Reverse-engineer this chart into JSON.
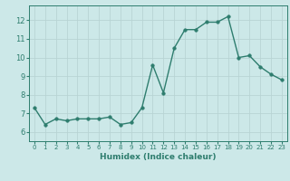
{
  "x": [
    0,
    1,
    2,
    3,
    4,
    5,
    6,
    7,
    8,
    9,
    10,
    11,
    12,
    13,
    14,
    15,
    16,
    17,
    18,
    19,
    20,
    21,
    22,
    23
  ],
  "y": [
    7.3,
    6.4,
    6.7,
    6.6,
    6.7,
    6.7,
    6.7,
    6.8,
    6.4,
    6.5,
    7.3,
    9.6,
    8.1,
    10.5,
    11.5,
    11.5,
    11.9,
    11.9,
    12.2,
    10.0,
    10.1,
    9.5,
    9.1,
    8.8
  ],
  "xlabel": "Humidex (Indice chaleur)",
  "xlim": [
    -0.5,
    23.5
  ],
  "ylim": [
    5.5,
    12.8
  ],
  "yticks": [
    6,
    7,
    8,
    9,
    10,
    11,
    12
  ],
  "xticks": [
    0,
    1,
    2,
    3,
    4,
    5,
    6,
    7,
    8,
    9,
    10,
    11,
    12,
    13,
    14,
    15,
    16,
    17,
    18,
    19,
    20,
    21,
    22,
    23
  ],
  "line_color": "#2e7d6e",
  "marker_size": 2.5,
  "bg_color": "#cce8e8",
  "grid_color": "#b8d4d4",
  "axis_color": "#2e7d6e",
  "label_color": "#2e7d6e"
}
